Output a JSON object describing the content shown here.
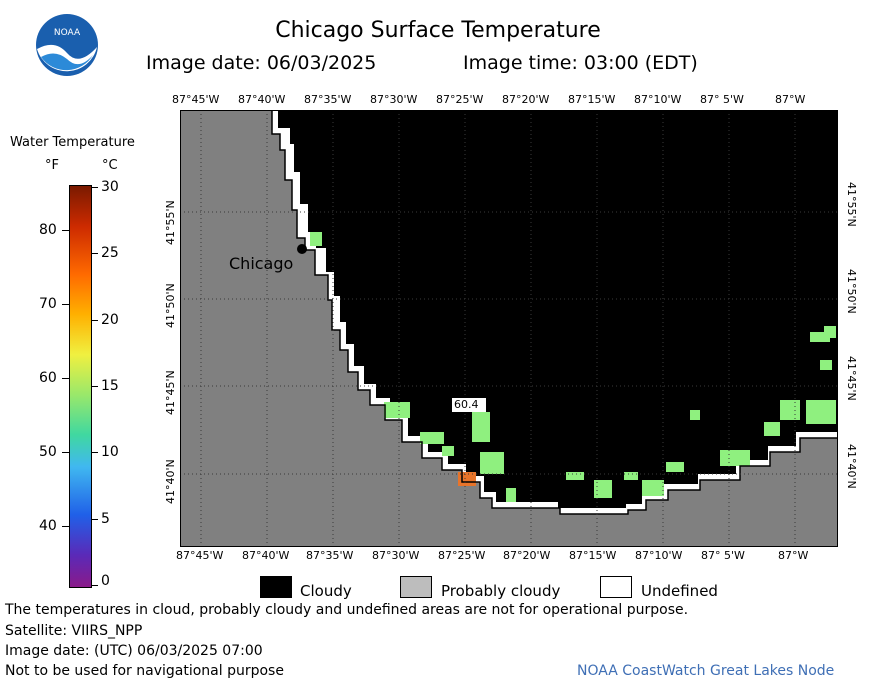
{
  "header": {
    "title": "Chicago Surface Temperature",
    "image_date": "Image date: 06/03/2025",
    "image_time": "Image time: 03:00 (EDT)"
  },
  "logo": {
    "text": "NOAA"
  },
  "colorbar": {
    "title": "Water Temperature",
    "unit_f": "°F",
    "unit_c": "°C",
    "f_ticks": [
      "80",
      "70",
      "60",
      "50",
      "40"
    ],
    "c_ticks": [
      "30",
      "25",
      "20",
      "15",
      "10",
      "5",
      "0"
    ]
  },
  "map": {
    "lon_ticks": [
      "87°45'W",
      "87°40'W",
      "87°35'W",
      "87°30'W",
      "87°25'W",
      "87°20'W",
      "87°15'W",
      "87°10'W",
      "87° 5'W",
      "87°W"
    ],
    "lat_ticks": [
      "41°55'N",
      "41°50'N",
      "41°45'N",
      "41°40'N"
    ],
    "city_label": "Chicago",
    "point_value": "60.4"
  },
  "legend": {
    "cloudy": "Cloudy",
    "probably_cloudy": "Probably cloudy",
    "undefined": "Undefined"
  },
  "colors": {
    "land": "#808080",
    "cloud": "#000000",
    "water_green": "#8ff07f",
    "probably_cloudy": "#bdbdbd"
  },
  "footer": {
    "disclaimer": "The temperatures in cloud, probably cloudy and undefined areas are not for operational purpose.",
    "satellite": "Satellite: VIIRS_NPP",
    "utc_date": "Image date: (UTC) 06/03/2025  07:00",
    "nav_note": "Not to be used for navigational purpose",
    "credit": "NOAA CoastWatch Great Lakes Node"
  }
}
